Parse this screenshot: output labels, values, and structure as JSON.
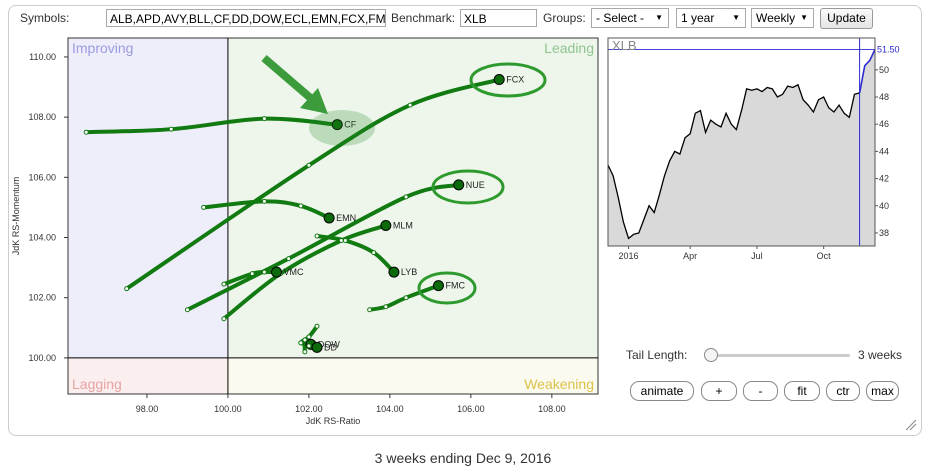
{
  "toolbar": {
    "symbols_label": "Symbols:",
    "symbols_value": "ALB,APD,AVY,BLL,CF,DD,DOW,ECL,EMN,FCX,FMC",
    "benchmark_label": "Benchmark:",
    "benchmark_value": "XLB",
    "groups_label": "Groups:",
    "groups_value": "- Select -",
    "period_value": "1 year",
    "interval_value": "Weekly",
    "update_button": "Update"
  },
  "rrg": {
    "type": "scatter",
    "x_label": "JdK RS-Ratio",
    "y_label": "JdK RS-Momentum",
    "xlim": [
      96.05,
      109.14
    ],
    "ylim": [
      98.8,
      110.63
    ],
    "center": 100,
    "xticks": [
      {
        "value": 98,
        "label": "98.00"
      },
      {
        "value": 100,
        "label": "100.00"
      },
      {
        "value": 102,
        "label": "102.00"
      },
      {
        "value": 104,
        "label": "104.00"
      },
      {
        "value": 106,
        "label": "106.00"
      },
      {
        "value": 108,
        "label": "108.00"
      }
    ],
    "yticks": [
      {
        "value": 100,
        "label": "100.00"
      },
      {
        "value": 102,
        "label": "102.00"
      },
      {
        "value": 104,
        "label": "104.00"
      },
      {
        "value": 106,
        "label": "106.00"
      },
      {
        "value": 108,
        "label": "108.00"
      },
      {
        "value": 110,
        "label": "110.00"
      }
    ],
    "quadrants": [
      {
        "name": "Improving",
        "corner": "top-left",
        "background": "#eeeefb",
        "color": "#9a9ae0"
      },
      {
        "name": "Leading",
        "corner": "top-right",
        "background": "#eef6ec",
        "color": "#8fc48f"
      },
      {
        "name": "Lagging",
        "corner": "bottom-left",
        "background": "#fbeeee",
        "color": "#e9a3a3"
      },
      {
        "name": "Weakening",
        "corner": "bottom-right",
        "background": "#fafaee",
        "color": "#dcc24a"
      }
    ],
    "color": "#117a11",
    "series": [
      {
        "name": "CF",
        "x": [
          96.5,
          98.6,
          100.9,
          102.7
        ],
        "y": [
          107.5,
          107.6,
          107.95,
          107.75
        ]
      },
      {
        "name": "FCX",
        "x": [
          97.5,
          102.0,
          104.5,
          106.7
        ],
        "y": [
          102.3,
          106.4,
          108.4,
          109.25
        ]
      },
      {
        "name": "NUE",
        "x": [
          99.0,
          101.5,
          104.4,
          105.7
        ],
        "y": [
          101.6,
          103.3,
          105.35,
          105.75
        ]
      },
      {
        "name": "EMN",
        "x": [
          99.4,
          100.9,
          101.8,
          102.5
        ],
        "y": [
          105.0,
          105.2,
          105.05,
          104.65
        ]
      },
      {
        "name": "MLM",
        "x": [
          99.9,
          101.3,
          102.8,
          103.9
        ],
        "y": [
          101.3,
          102.8,
          103.9,
          104.4
        ]
      },
      {
        "name": "VMC",
        "x": [
          99.9,
          100.6,
          100.9,
          101.2
        ],
        "y": [
          102.45,
          102.8,
          102.85,
          102.85
        ]
      },
      {
        "name": "LYB",
        "x": [
          102.2,
          102.9,
          103.6,
          104.1
        ],
        "y": [
          104.05,
          103.9,
          103.5,
          102.85
        ]
      },
      {
        "name": "FMC",
        "x": [
          103.5,
          103.9,
          104.4,
          105.2
        ],
        "y": [
          101.6,
          101.7,
          102.0,
          102.4
        ]
      },
      {
        "name": "DOW",
        "x": [
          102.2,
          102.0,
          101.8,
          102.05
        ],
        "y": [
          101.05,
          100.7,
          100.5,
          100.45
        ]
      },
      {
        "name": "DD",
        "x": [
          101.9,
          101.9,
          102.0,
          102.2
        ],
        "y": [
          100.2,
          100.6,
          100.4,
          100.35
        ]
      }
    ]
  },
  "benchmark_chart": {
    "type": "line",
    "title": "XLB",
    "categories": [
      null,
      null,
      null,
      null,
      "2016",
      null,
      null,
      null,
      null,
      null,
      null,
      null,
      null,
      null,
      null,
      null,
      "Apr",
      null,
      null,
      null,
      null,
      null,
      null,
      null,
      null,
      null,
      null,
      null,
      null,
      "Jul",
      null,
      null,
      null,
      null,
      null,
      null,
      null,
      null,
      null,
      null,
      null,
      null,
      "Oct",
      null,
      null,
      null,
      null,
      null,
      null,
      null,
      null,
      null,
      null
    ],
    "values": [
      43.0,
      42.2,
      40.6,
      38.8,
      37.6,
      37.9,
      38.0,
      39.0,
      40.0,
      39.5,
      40.8,
      42.2,
      43.3,
      44.0,
      43.8,
      45.0,
      45.3,
      46.8,
      47.0,
      45.4,
      46.3,
      46.0,
      45.8,
      46.8,
      46.0,
      45.6,
      47.0,
      48.6,
      48.5,
      48.6,
      48.4,
      48.7,
      48.6,
      48.0,
      48.2,
      48.8,
      48.7,
      48.9,
      47.8,
      47.4,
      46.9,
      47.8,
      48.0,
      47.2,
      46.9,
      47.4,
      46.8,
      46.5,
      48.2,
      48.3,
      50.3,
      50.7,
      51.5
    ],
    "last_value_label": {
      "value": 51.5,
      "label": "51.50"
    },
    "ylim": [
      37.04,
      52.34
    ],
    "yticks": [
      38,
      40,
      42,
      44,
      46,
      48,
      50
    ],
    "color": "#000000",
    "tail_color": "#2a2ad0",
    "area_color": "#d9d9d9"
  },
  "controls": {
    "tail_label": "Tail Length:",
    "tail_length": {
      "value": 3,
      "label": "3 weeks"
    },
    "buttons": [
      "animate",
      "+",
      "-",
      "fit",
      "ctr",
      "max"
    ]
  },
  "caption": "3 weeks ending Dec 9, 2016"
}
